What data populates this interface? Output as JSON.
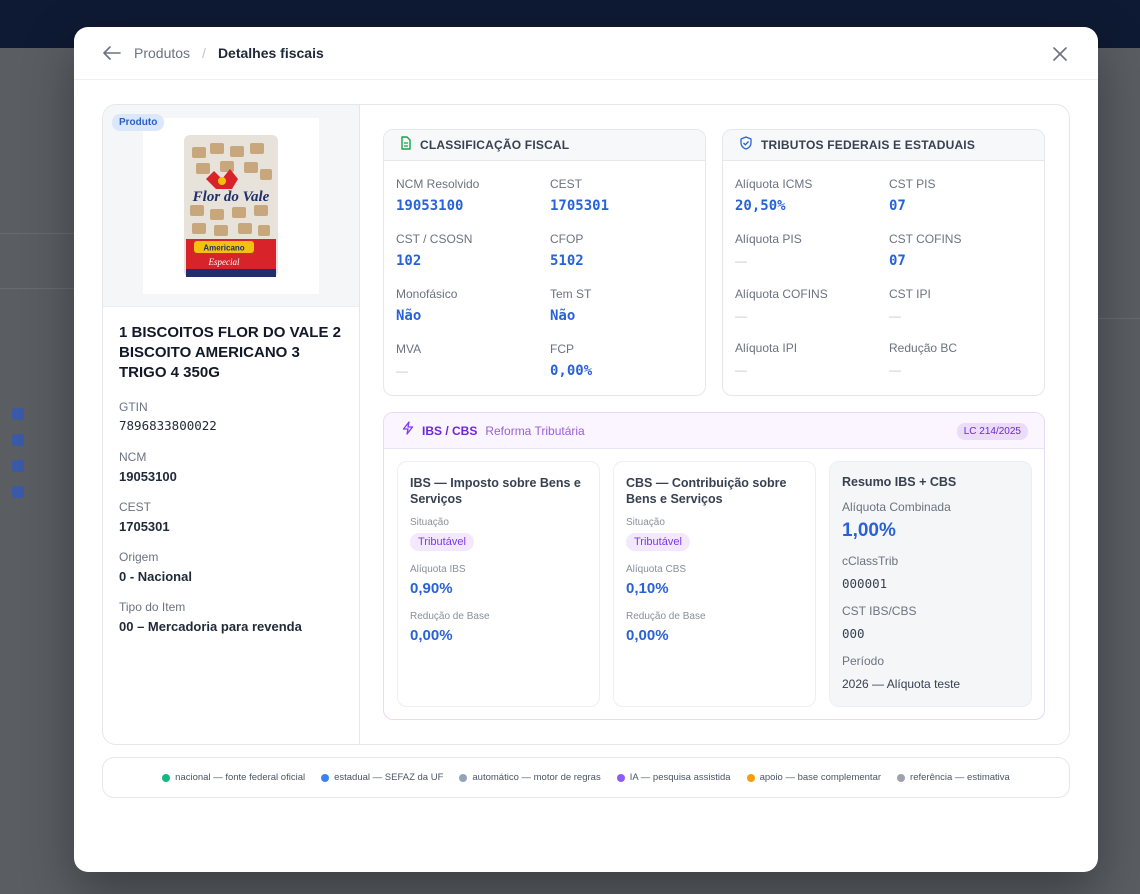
{
  "header": {
    "breadcrumb_parent": "Produtos",
    "breadcrumb_separator": "/",
    "breadcrumb_current": "Detalhes fiscais"
  },
  "product": {
    "badge": "Produto",
    "name": "1 BISCOITOS FLOR DO VALE 2 BISCOITO AMERICANO 3 TRIGO 4 350G",
    "image_brand": "Flor do Vale",
    "image_variant": "Americano",
    "image_subvariant": "Especial",
    "fields": [
      {
        "label": "GTIN",
        "value": "7896833800022"
      },
      {
        "label": "NCM",
        "value": "19053100"
      },
      {
        "label": "CEST",
        "value": "1705301"
      },
      {
        "label": "Origem",
        "value": "0 - Nacional"
      },
      {
        "label": "Tipo do Item",
        "value": "00 – Mercadoria para revenda"
      }
    ]
  },
  "classificacao": {
    "title": "CLASSIFICAÇÃO FISCAL",
    "fields": [
      {
        "label": "NCM Resolvido",
        "value": "19053100"
      },
      {
        "label": "CEST",
        "value": "1705301"
      },
      {
        "label": "CST / CSOSN",
        "value": "102"
      },
      {
        "label": "CFOP",
        "value": "5102"
      },
      {
        "label": "Monofásico",
        "value": "Não"
      },
      {
        "label": "Tem ST",
        "value": "Não"
      },
      {
        "label": "MVA",
        "value": "—"
      },
      {
        "label": "FCP",
        "value": "0,00%"
      }
    ]
  },
  "tributos": {
    "title": "TRIBUTOS FEDERAIS E ESTADUAIS",
    "fields": [
      {
        "label": "Alíquota ICMS",
        "value": "20,50%"
      },
      {
        "label": "CST PIS",
        "value": "07"
      },
      {
        "label": "Alíquota PIS",
        "value": "—"
      },
      {
        "label": "CST COFINS",
        "value": "07"
      },
      {
        "label": "Alíquota COFINS",
        "value": "—"
      },
      {
        "label": "CST IPI",
        "value": "—"
      },
      {
        "label": "Alíquota IPI",
        "value": "—"
      },
      {
        "label": "Redução BC",
        "value": "—"
      }
    ]
  },
  "ibs_cbs": {
    "title": "IBS / CBS",
    "subtitle": "Reforma Tributária",
    "badge": "LC 214/2025",
    "ibs": {
      "title": "IBS — Imposto sobre Bens e Serviços",
      "situacao_label": "Situação",
      "situacao": "Tributável",
      "aliquota_label": "Alíquota IBS",
      "aliquota": "0,90%",
      "reducao_label": "Redução de Base",
      "reducao": "0,00%"
    },
    "cbs": {
      "title": "CBS — Contribuição sobre Bens e Serviços",
      "situacao_label": "Situação",
      "situacao": "Tributável",
      "aliquota_label": "Alíquota CBS",
      "aliquota": "0,10%",
      "reducao_label": "Redução de Base",
      "reducao": "0,00%"
    },
    "resumo": {
      "title": "Resumo IBS + CBS",
      "aliquota_label": "Alíquota Combinada",
      "aliquota": "1,00%",
      "cclass_label": "cClassTrib",
      "cclass": "000001",
      "cst_label": "CST IBS/CBS",
      "cst": "000",
      "periodo_label": "Período",
      "periodo": "2026 — Alíquota teste"
    }
  },
  "legend": [
    {
      "label": "nacional — fonte federal oficial",
      "color": "#10b981"
    },
    {
      "label": "estadual — SEFAZ da UF",
      "color": "#3b82f6"
    },
    {
      "label": "automático — motor de regras",
      "color": "#94a3b8"
    },
    {
      "label": "IA — pesquisa assistida",
      "color": "#8b5cf6"
    },
    {
      "label": "apoio — base complementar",
      "color": "#f59e0b"
    },
    {
      "label": "referência — estimativa",
      "color": "#9ca3af"
    }
  ]
}
